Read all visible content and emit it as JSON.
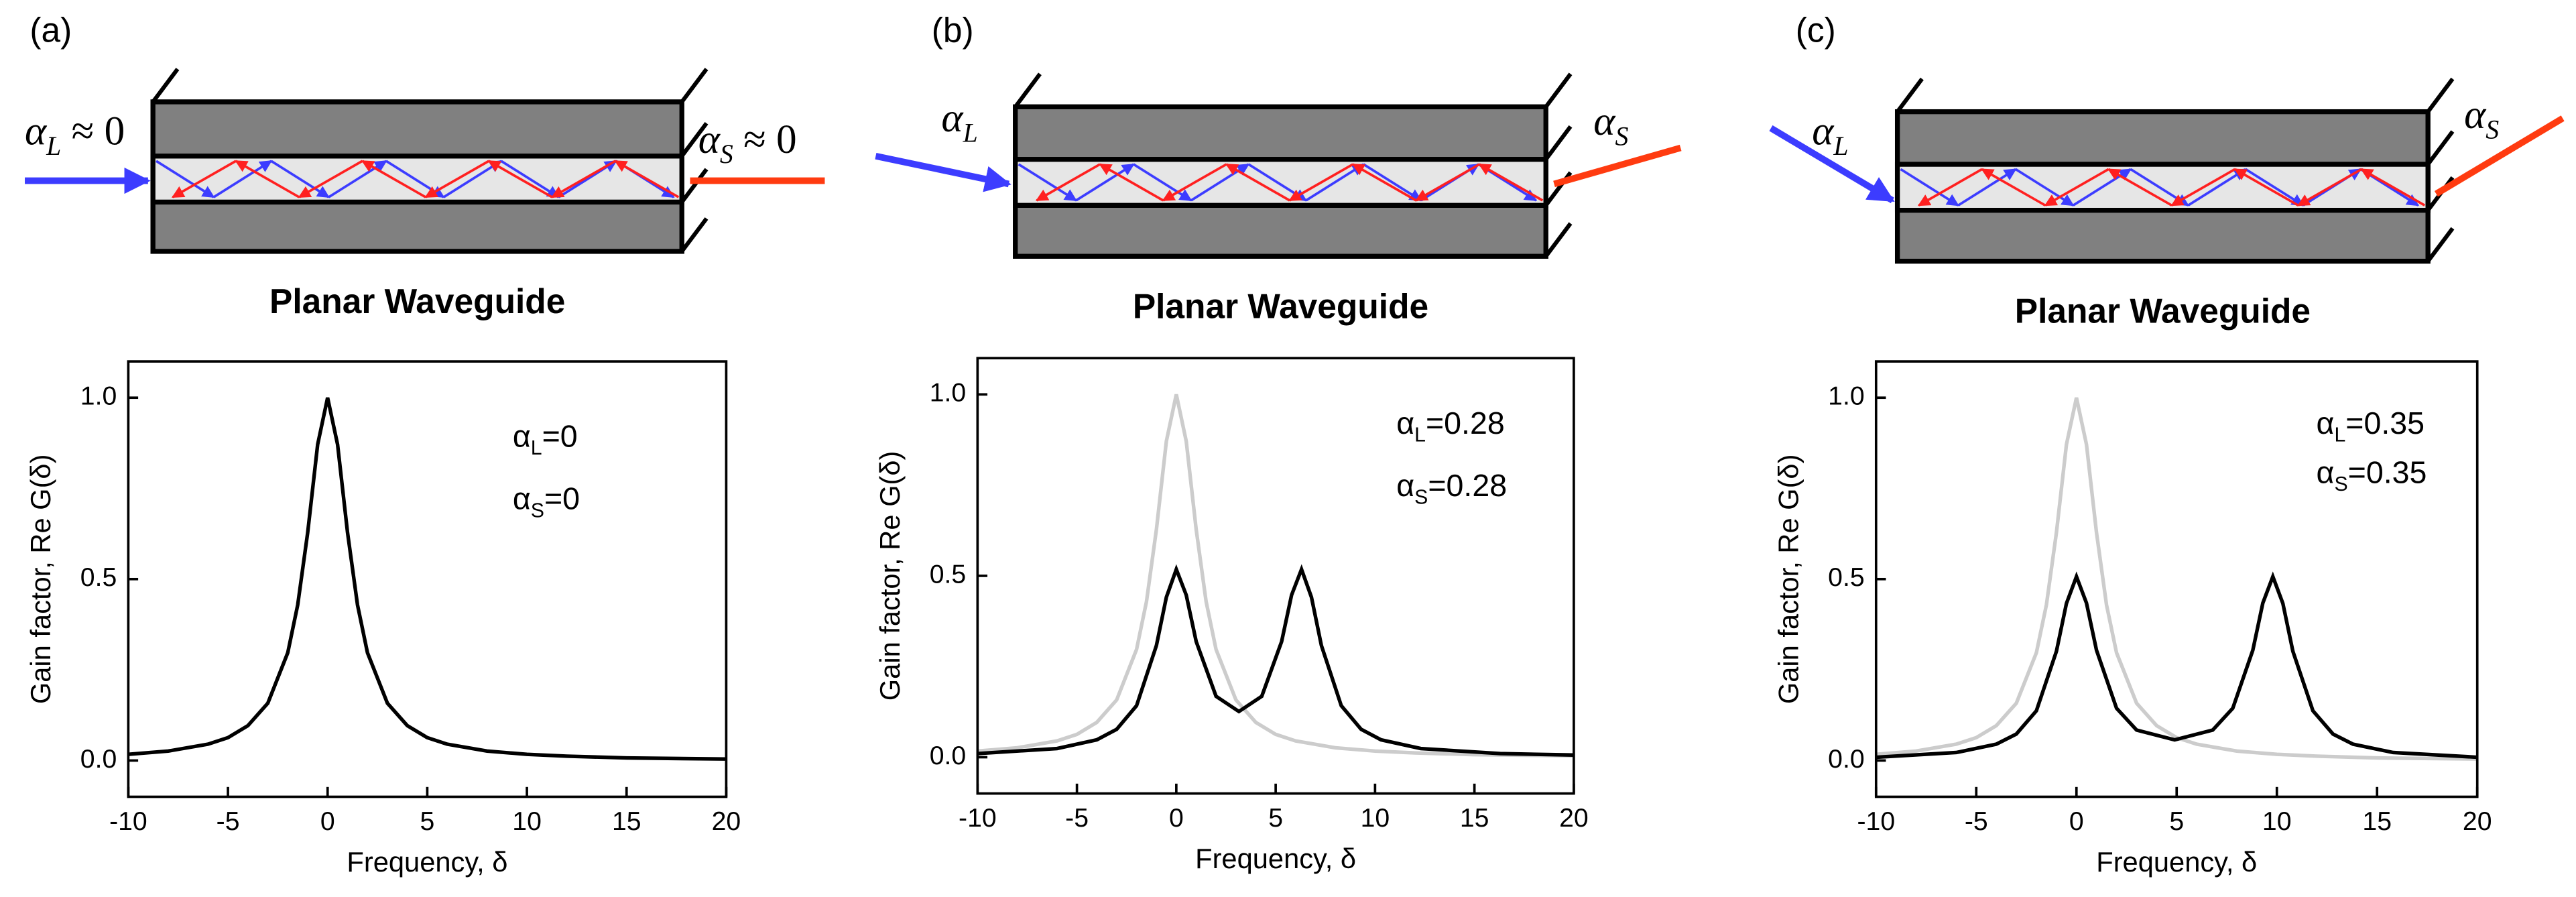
{
  "chart_data": [
    {
      "type": "line",
      "panel_label": "(a)",
      "diagram_title": "Planar Waveguide",
      "diagram_labels": [
        {
          "base": "α",
          "sub": "L",
          "rest": " ≈ 0"
        },
        {
          "base": "α",
          "sub": "S",
          "rest": " ≈ 0"
        }
      ],
      "annotations": [
        {
          "base": "α",
          "sub": "L",
          "rest": "=0"
        },
        {
          "base": "α",
          "sub": "S",
          "rest": "=0"
        }
      ],
      "xlabel": "Frequency, δ",
      "ylabel": "Gain factor, Re G(δ)",
      "xlim": [
        -10,
        20
      ],
      "ylim": [
        -0.1,
        1.1
      ],
      "xticks": [
        -10,
        -5,
        0,
        5,
        10,
        15,
        20
      ],
      "yticks": [
        {
          "value": 0,
          "label": "0.0"
        },
        0.5,
        {
          "value": 1,
          "label": "1.0"
        }
      ],
      "series": [
        {
          "color": "#000000",
          "x": [
            -10,
            -8,
            -6,
            -5,
            -4,
            -3,
            -2,
            -1.5,
            -1,
            -0.5,
            0,
            0.5,
            1,
            1.5,
            2,
            3,
            4,
            5,
            6,
            8,
            10,
            12,
            15,
            20
          ],
          "values": [
            0.017,
            0.026,
            0.045,
            0.063,
            0.096,
            0.158,
            0.297,
            0.429,
            0.628,
            0.871,
            1,
            0.871,
            0.628,
            0.429,
            0.297,
            0.158,
            0.096,
            0.063,
            0.045,
            0.026,
            0.017,
            0.012,
            0.007,
            0.004
          ]
        }
      ]
    },
    {
      "type": "line",
      "panel_label": "(b)",
      "diagram_title": "Planar Waveguide",
      "diagram_labels": [
        {
          "base": "α",
          "sub": "L",
          "rest": ""
        },
        {
          "base": "α",
          "sub": "S",
          "rest": ""
        }
      ],
      "annotations": [
        {
          "base": "α",
          "sub": "L",
          "rest": "=0.28"
        },
        {
          "base": "α",
          "sub": "S",
          "rest": "=0.28"
        }
      ],
      "xlabel": "Frequency, δ",
      "ylabel": "Gain factor, Re G(δ)",
      "xlim": [
        -10,
        20
      ],
      "ylim": [
        -0.1,
        1.1
      ],
      "xticks": [
        -10,
        -5,
        0,
        5,
        10,
        15,
        20
      ],
      "yticks": [
        {
          "value": 0,
          "label": "0.0"
        },
        0.5,
        {
          "value": 1,
          "label": "1.0"
        }
      ],
      "series": [
        {
          "color": "#cccccc",
          "x": [
            -10,
            -8,
            -6,
            -5,
            -4,
            -3,
            -2,
            -1.5,
            -1,
            -0.5,
            0,
            0.5,
            1,
            1.5,
            2,
            3,
            4,
            5,
            6,
            8,
            10,
            12,
            15,
            20
          ],
          "values": [
            0.017,
            0.026,
            0.045,
            0.063,
            0.096,
            0.158,
            0.297,
            0.429,
            0.628,
            0.871,
            1,
            0.871,
            0.628,
            0.429,
            0.297,
            0.158,
            0.096,
            0.063,
            0.045,
            0.026,
            0.017,
            0.012,
            0.007,
            0.004
          ]
        },
        {
          "color": "#000000",
          "x": [
            -10,
            -6,
            -4,
            -3,
            -2,
            -1,
            -0.5,
            0,
            0.5,
            1,
            2,
            3.15,
            4.3,
            5.3,
            5.8,
            6.3,
            6.8,
            7.3,
            8.3,
            9.3,
            10.3,
            12.3,
            16.3,
            20
          ],
          "values": [
            0.01,
            0.024,
            0.048,
            0.077,
            0.142,
            0.308,
            0.441,
            0.518,
            0.447,
            0.319,
            0.168,
            0.126,
            0.168,
            0.319,
            0.447,
            0.518,
            0.441,
            0.308,
            0.142,
            0.077,
            0.048,
            0.024,
            0.01,
            0.006
          ]
        }
      ]
    },
    {
      "type": "line",
      "panel_label": "(c)",
      "diagram_title": "Planar Waveguide",
      "diagram_labels": [
        {
          "base": "α",
          "sub": "L",
          "rest": ""
        },
        {
          "base": "α",
          "sub": "S",
          "rest": ""
        }
      ],
      "annotations": [
        {
          "base": "α",
          "sub": "L",
          "rest": "=0.35"
        },
        {
          "base": "α",
          "sub": "S",
          "rest": "=0.35"
        }
      ],
      "xlabel": "Frequency, δ",
      "ylabel": "Gain factor, Re G(δ)",
      "xlim": [
        -10,
        20
      ],
      "ylim": [
        -0.1,
        1.1
      ],
      "xticks": [
        -10,
        -5,
        0,
        5,
        10,
        15,
        20
      ],
      "yticks": [
        {
          "value": 0,
          "label": "0.0"
        },
        0.5,
        {
          "value": 1,
          "label": "1.0"
        }
      ],
      "series": [
        {
          "color": "#cccccc",
          "x": [
            -10,
            -8,
            -6,
            -5,
            -4,
            -3,
            -2,
            -1.5,
            -1,
            -0.5,
            0,
            0.5,
            1,
            1.5,
            2,
            3,
            4,
            5,
            6,
            8,
            10,
            12,
            15,
            20
          ],
          "values": [
            0.017,
            0.026,
            0.045,
            0.063,
            0.096,
            0.158,
            0.297,
            0.429,
            0.628,
            0.871,
            1,
            0.871,
            0.628,
            0.429,
            0.297,
            0.158,
            0.096,
            0.063,
            0.045,
            0.026,
            0.017,
            0.012,
            0.007,
            0.004
          ]
        },
        {
          "color": "#000000",
          "x": [
            -10,
            -6,
            -4,
            -3,
            -2,
            -1,
            -0.5,
            0,
            0.5,
            1,
            2,
            3,
            4.9,
            6.8,
            7.8,
            8.8,
            9.3,
            9.8,
            10.3,
            10.8,
            11.8,
            12.8,
            13.8,
            15.8,
            20
          ],
          "values": [
            0.009,
            0.022,
            0.045,
            0.073,
            0.137,
            0.301,
            0.433,
            0.507,
            0.434,
            0.304,
            0.144,
            0.084,
            0.057,
            0.084,
            0.144,
            0.304,
            0.434,
            0.507,
            0.433,
            0.301,
            0.137,
            0.073,
            0.045,
            0.022,
            0.009
          ]
        }
      ]
    }
  ]
}
